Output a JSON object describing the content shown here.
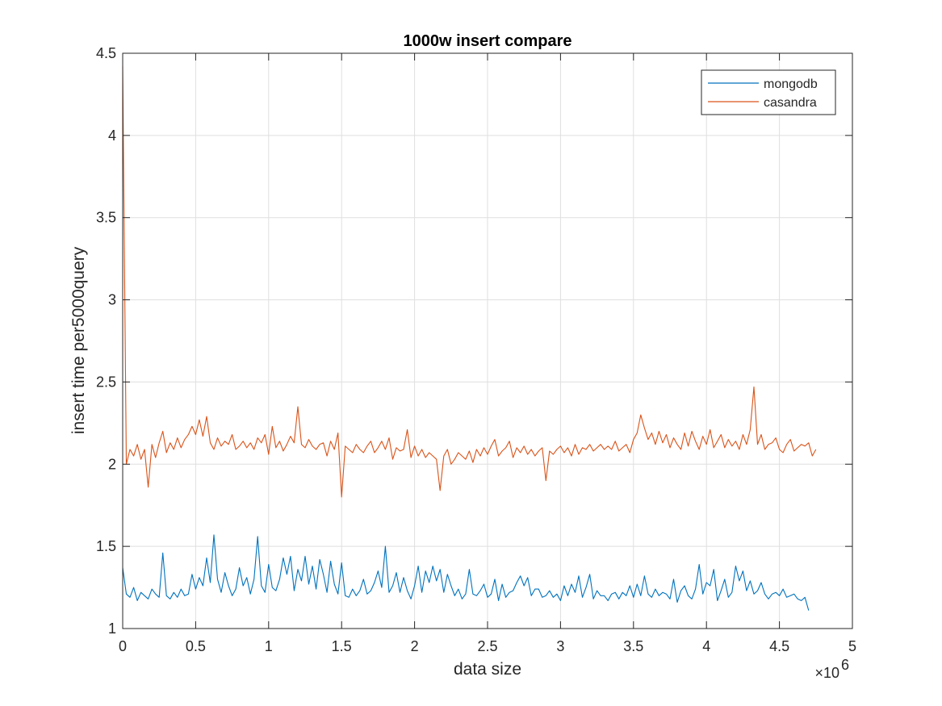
{
  "chart_data": {
    "type": "line",
    "title": "1000w insert compare",
    "xlabel": "data size",
    "ylabel": "insert time per5000query",
    "x_exponent_label": "×10",
    "x_exponent_power": "6",
    "xlim": [
      0,
      5
    ],
    "ylim": [
      1,
      4.5
    ],
    "x_ticks": [
      0,
      0.5,
      1,
      1.5,
      2,
      2.5,
      3,
      3.5,
      4,
      4.5,
      5
    ],
    "x_tick_labels": [
      "0",
      "0.5",
      "1",
      "1.5",
      "2",
      "2.5",
      "3",
      "3.5",
      "4",
      "4.5",
      "5"
    ],
    "y_ticks": [
      1,
      1.5,
      2,
      2.5,
      3,
      3.5,
      4,
      4.5
    ],
    "y_tick_labels": [
      "1",
      "1.5",
      "2",
      "2.5",
      "3",
      "3.5",
      "4",
      "4.5"
    ],
    "grid": true,
    "legend_position": "top-right",
    "x_step": 0.025,
    "series": [
      {
        "name": "mongodb",
        "color": "#0072BD",
        "values": [
          1.37,
          1.21,
          1.19,
          1.25,
          1.17,
          1.22,
          1.2,
          1.18,
          1.24,
          1.21,
          1.19,
          1.46,
          1.2,
          1.18,
          1.22,
          1.19,
          1.24,
          1.2,
          1.21,
          1.33,
          1.24,
          1.31,
          1.26,
          1.43,
          1.28,
          1.57,
          1.3,
          1.22,
          1.34,
          1.26,
          1.2,
          1.24,
          1.37,
          1.26,
          1.31,
          1.21,
          1.3,
          1.56,
          1.26,
          1.22,
          1.39,
          1.25,
          1.23,
          1.3,
          1.43,
          1.33,
          1.44,
          1.23,
          1.36,
          1.29,
          1.44,
          1.27,
          1.38,
          1.24,
          1.42,
          1.33,
          1.22,
          1.41,
          1.27,
          1.21,
          1.4,
          1.2,
          1.19,
          1.24,
          1.2,
          1.23,
          1.3,
          1.21,
          1.23,
          1.28,
          1.35,
          1.25,
          1.5,
          1.22,
          1.26,
          1.34,
          1.22,
          1.31,
          1.23,
          1.18,
          1.26,
          1.38,
          1.22,
          1.35,
          1.28,
          1.38,
          1.29,
          1.36,
          1.22,
          1.33,
          1.26,
          1.2,
          1.24,
          1.18,
          1.21,
          1.36,
          1.21,
          1.2,
          1.23,
          1.27,
          1.19,
          1.21,
          1.3,
          1.17,
          1.27,
          1.19,
          1.22,
          1.23,
          1.28,
          1.32,
          1.26,
          1.31,
          1.2,
          1.24,
          1.24,
          1.19,
          1.2,
          1.23,
          1.19,
          1.21,
          1.17,
          1.26,
          1.2,
          1.27,
          1.22,
          1.32,
          1.19,
          1.25,
          1.33,
          1.18,
          1.23,
          1.2,
          1.2,
          1.17,
          1.21,
          1.22,
          1.18,
          1.22,
          1.2,
          1.26,
          1.19,
          1.27,
          1.2,
          1.32,
          1.21,
          1.19,
          1.24,
          1.2,
          1.22,
          1.21,
          1.18,
          1.3,
          1.16,
          1.23,
          1.26,
          1.2,
          1.18,
          1.24,
          1.39,
          1.21,
          1.28,
          1.26,
          1.36,
          1.17,
          1.23,
          1.3,
          1.19,
          1.22,
          1.38,
          1.29,
          1.35,
          1.23,
          1.29,
          1.21,
          1.23,
          1.28,
          1.21,
          1.18,
          1.21,
          1.22,
          1.2,
          1.24,
          1.19,
          1.2,
          1.21,
          1.18,
          1.17,
          1.19,
          1.11
        ]
      },
      {
        "name": "casandra",
        "color": "#D95319",
        "values": [
          4.42,
          2.0,
          2.09,
          2.05,
          2.12,
          2.03,
          2.09,
          1.86,
          2.12,
          2.04,
          2.13,
          2.2,
          2.07,
          2.13,
          2.09,
          2.16,
          2.1,
          2.15,
          2.18,
          2.23,
          2.18,
          2.27,
          2.17,
          2.29,
          2.13,
          2.09,
          2.16,
          2.11,
          2.14,
          2.12,
          2.18,
          2.09,
          2.11,
          2.14,
          2.1,
          2.13,
          2.09,
          2.16,
          2.13,
          2.18,
          2.06,
          2.23,
          2.1,
          2.14,
          2.08,
          2.12,
          2.17,
          2.13,
          2.35,
          2.12,
          2.1,
          2.15,
          2.11,
          2.09,
          2.12,
          2.13,
          2.05,
          2.14,
          2.09,
          2.19,
          1.8,
          2.11,
          2.09,
          2.07,
          2.12,
          2.09,
          2.07,
          2.11,
          2.14,
          2.07,
          2.1,
          2.14,
          2.09,
          2.16,
          2.03,
          2.1,
          2.08,
          2.09,
          2.21,
          2.04,
          2.11,
          2.05,
          2.09,
          2.04,
          2.07,
          2.05,
          2.03,
          1.84,
          2.05,
          2.09,
          2.0,
          2.03,
          2.07,
          2.05,
          2.03,
          2.08,
          2.01,
          2.09,
          2.05,
          2.1,
          2.06,
          2.11,
          2.15,
          2.05,
          2.08,
          2.1,
          2.14,
          2.04,
          2.1,
          2.07,
          2.11,
          2.06,
          2.09,
          2.05,
          2.08,
          2.1,
          1.9,
          2.08,
          2.06,
          2.09,
          2.11,
          2.07,
          2.1,
          2.05,
          2.12,
          2.06,
          2.1,
          2.09,
          2.12,
          2.08,
          2.1,
          2.12,
          2.09,
          2.11,
          2.09,
          2.14,
          2.08,
          2.1,
          2.12,
          2.07,
          2.15,
          2.19,
          2.3,
          2.22,
          2.15,
          2.19,
          2.12,
          2.2,
          2.13,
          2.18,
          2.1,
          2.16,
          2.12,
          2.09,
          2.19,
          2.11,
          2.2,
          2.14,
          2.09,
          2.17,
          2.12,
          2.21,
          2.1,
          2.14,
          2.18,
          2.1,
          2.15,
          2.11,
          2.14,
          2.09,
          2.18,
          2.12,
          2.21,
          2.47,
          2.12,
          2.18,
          2.09,
          2.12,
          2.13,
          2.16,
          2.09,
          2.07,
          2.12,
          2.15,
          2.08,
          2.1,
          2.12,
          2.11,
          2.13,
          2.05,
          2.09
        ]
      }
    ]
  },
  "colors": {
    "axis": "#262626",
    "grid": "#dfdfdf",
    "background": "#ffffff"
  }
}
